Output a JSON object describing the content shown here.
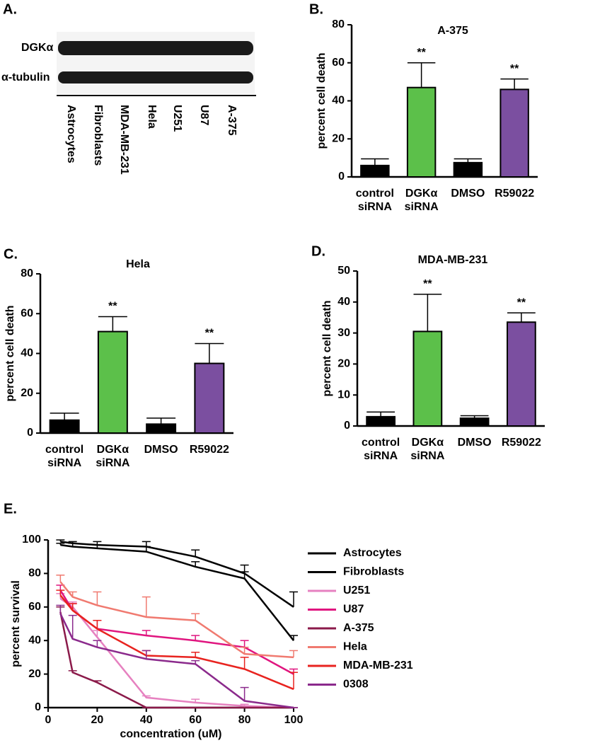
{
  "blot": {
    "panel": "A.",
    "rows": [
      "DGKα",
      "α-tubulin"
    ],
    "lanes": [
      "Astrocytes",
      "Fibroblasts",
      "MDA-MB-231",
      "Hela",
      "U251",
      "U87",
      "A-375"
    ]
  },
  "chart_data": [
    {
      "type": "bar",
      "panel": "B.",
      "title": "A-375",
      "ylabel": "percent cell death",
      "categories": [
        "control siRNA",
        "DGKα siRNA",
        "DMSO",
        "R59022"
      ],
      "values": [
        6,
        47,
        7.5,
        46
      ],
      "errors": [
        3.5,
        13,
        2,
        5.5
      ],
      "annotations": [
        null,
        "**",
        null,
        "**"
      ],
      "colors": [
        "#000000",
        "#5cc04a",
        "#000000",
        "#7b4fa0"
      ],
      "ylim": [
        0,
        80
      ],
      "yticks": [
        0,
        20,
        40,
        60,
        80
      ]
    },
    {
      "type": "bar",
      "panel": "C.",
      "title": "Hela",
      "ylabel": "percent cell death",
      "categories": [
        "control siRNA",
        "DGKα siRNA",
        "DMSO",
        "R59022"
      ],
      "values": [
        6.5,
        51,
        4.5,
        35
      ],
      "errors": [
        3.5,
        7.5,
        3,
        10
      ],
      "annotations": [
        null,
        "**",
        null,
        "**"
      ],
      "colors": [
        "#000000",
        "#5cc04a",
        "#000000",
        "#7b4fa0"
      ],
      "ylim": [
        0,
        80
      ],
      "yticks": [
        0,
        20,
        40,
        60,
        80
      ]
    },
    {
      "type": "bar",
      "panel": "D.",
      "title": "MDA-MB-231",
      "ylabel": "percent cell death",
      "categories": [
        "control siRNA",
        "DGKα siRNA",
        "DMSO",
        "R59022"
      ],
      "values": [
        3,
        30.5,
        2.5,
        33.5
      ],
      "errors": [
        1.5,
        12,
        0.8,
        3
      ],
      "annotations": [
        null,
        "**",
        null,
        "**"
      ],
      "colors": [
        "#000000",
        "#5cc04a",
        "#000000",
        "#7b4fa0"
      ],
      "ylim": [
        0,
        50
      ],
      "yticks": [
        0,
        10,
        20,
        30,
        40,
        50
      ]
    },
    {
      "type": "line",
      "panel": "E.",
      "xlabel": "concentration (uM)",
      "ylabel": "percent survival",
      "x": [
        5,
        10,
        20,
        40,
        60,
        80,
        100
      ],
      "series": [
        {
          "name": "Astrocytes",
          "color": "#000000",
          "values": [
            99,
            98,
            97,
            96,
            90,
            80,
            60
          ],
          "errors": [
            1,
            1,
            2,
            3,
            4,
            5,
            9
          ]
        },
        {
          "name": "Fibroblasts",
          "color": "#000000",
          "values": [
            97,
            96,
            95,
            93,
            84,
            77,
            40
          ],
          "errors": [
            1,
            2,
            2,
            3,
            3,
            4,
            3
          ]
        },
        {
          "name": "U251",
          "color": "#e681c0",
          "values": [
            65,
            60,
            42,
            6,
            3,
            1,
            0
          ],
          "errors": [
            3,
            3,
            4,
            1,
            2,
            1,
            0
          ]
        },
        {
          "name": "U87",
          "color": "#e0157f",
          "values": [
            70,
            58,
            47,
            43,
            40,
            36,
            20
          ],
          "errors": [
            3,
            4,
            5,
            3,
            3,
            4,
            3
          ]
        },
        {
          "name": "A-375",
          "color": "#8b1a4a",
          "values": [
            57,
            21,
            15,
            0,
            0,
            0,
            0
          ],
          "errors": [
            3,
            1,
            1,
            0,
            0,
            0,
            0
          ]
        },
        {
          "name": "Hela",
          "color": "#f07a70",
          "values": [
            75,
            66,
            61,
            54,
            52,
            32,
            30
          ],
          "errors": [
            4,
            3,
            8,
            12,
            4,
            4,
            4
          ]
        },
        {
          "name": "MDA-MB-231",
          "color": "#e8231f",
          "values": [
            67,
            58,
            47,
            31,
            30,
            23,
            11
          ],
          "errors": [
            3,
            4,
            5,
            3,
            3,
            7,
            10
          ]
        },
        {
          "name": "0308",
          "color": "#8b2a8c",
          "values": [
            56,
            41,
            36,
            29,
            26,
            4,
            0
          ],
          "errors": [
            5,
            14,
            4,
            5,
            2,
            8,
            0
          ]
        }
      ],
      "xlim": [
        0,
        100
      ],
      "xticks": [
        0,
        20,
        40,
        60,
        80,
        100
      ],
      "ylim": [
        0,
        100
      ],
      "yticks": [
        0,
        20,
        40,
        60,
        80,
        100
      ],
      "legend": "right"
    }
  ]
}
